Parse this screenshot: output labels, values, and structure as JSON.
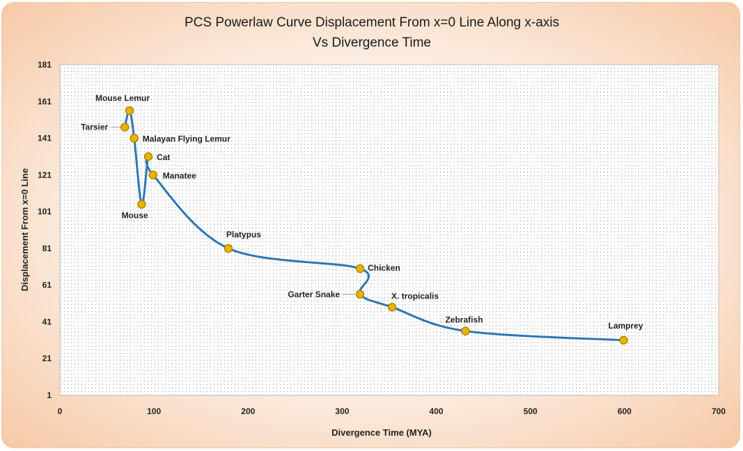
{
  "chart_data": {
    "type": "scatter",
    "title_line1": "PCS Powerlaw Curve Displacement From x=0 Line Along x-axis",
    "title_line2": "Vs Divergence Time",
    "xlabel": "Divergence Time (MYA)",
    "ylabel": "Displacement From x=0 Line",
    "xlim": [
      0,
      700
    ],
    "ylim": [
      1,
      181
    ],
    "xticks": [
      0,
      100,
      200,
      300,
      400,
      500,
      600,
      700
    ],
    "yticks": [
      1,
      21,
      41,
      61,
      81,
      101,
      121,
      141,
      161,
      181
    ],
    "grid": "dotted",
    "line_color": "#2e75b6",
    "marker_color": "#e8b400",
    "points": [
      {
        "name": "Tarsier",
        "x": 69,
        "y": 147
      },
      {
        "name": "Mouse Lemur",
        "x": 74,
        "y": 156
      },
      {
        "name": "Malayan Flying Lemur",
        "x": 79,
        "y": 141
      },
      {
        "name": "Mouse",
        "x": 87,
        "y": 105
      },
      {
        "name": "Cat",
        "x": 94,
        "y": 131
      },
      {
        "name": "Manatee",
        "x": 99,
        "y": 121
      },
      {
        "name": "Platypus",
        "x": 179,
        "y": 81
      },
      {
        "name": "Chicken",
        "x": 319,
        "y": 70
      },
      {
        "name": "Garter Snake",
        "x": 319,
        "y": 56
      },
      {
        "name": "X. tropicalis",
        "x": 353,
        "y": 49
      },
      {
        "name": "Zebrafish",
        "x": 431,
        "y": 36
      },
      {
        "name": "Lamprey",
        "x": 599,
        "y": 31
      }
    ]
  }
}
